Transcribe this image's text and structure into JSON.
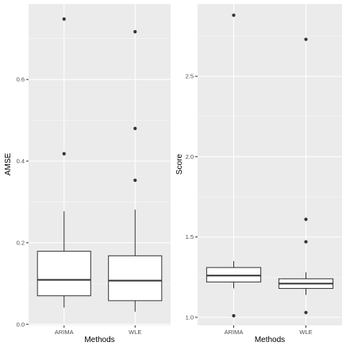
{
  "chart_data": [
    {
      "type": "boxplot",
      "title": "",
      "xlabel": "Methods",
      "ylabel": "AMSE",
      "categories": [
        "ARIMA",
        "WLE"
      ],
      "ylim": [
        -0.0025,
        0.785
      ],
      "yticks": [
        0.0,
        0.2,
        0.4,
        0.6
      ],
      "ytick_labels": [
        "0.0",
        "0.2",
        "0.4",
        "0.6"
      ],
      "grid": true,
      "legend": "none",
      "boxes": [
        {
          "category": "ARIMA",
          "min": 0.041,
          "q1": 0.07,
          "median": 0.109,
          "q3": 0.179,
          "max": 0.277,
          "outliers": [
            0.418,
            0.748
          ]
        },
        {
          "category": "WLE",
          "min": 0.031,
          "q1": 0.058,
          "median": 0.107,
          "q3": 0.168,
          "max": 0.281,
          "outliers": [
            0.353,
            0.48,
            0.717
          ]
        }
      ]
    },
    {
      "type": "boxplot",
      "title": "",
      "xlabel": "Methods",
      "ylabel": "Score",
      "categories": [
        "ARIMA",
        "WLE"
      ],
      "ylim": [
        0.95,
        2.95
      ],
      "yticks": [
        1.0,
        1.5,
        2.0,
        2.5
      ],
      "ytick_labels": [
        "1.0",
        "1.5",
        "2.0",
        "2.5"
      ],
      "grid": true,
      "legend": "none",
      "boxes": [
        {
          "category": "ARIMA",
          "min": 1.18,
          "q1": 1.22,
          "median": 1.26,
          "q3": 1.31,
          "max": 1.35,
          "outliers": [
            1.01,
            2.88
          ]
        },
        {
          "category": "WLE",
          "min": 1.14,
          "q1": 1.18,
          "median": 1.21,
          "q3": 1.24,
          "max": 1.28,
          "outliers": [
            1.03,
            1.47,
            1.61,
            2.73
          ]
        }
      ]
    }
  ]
}
